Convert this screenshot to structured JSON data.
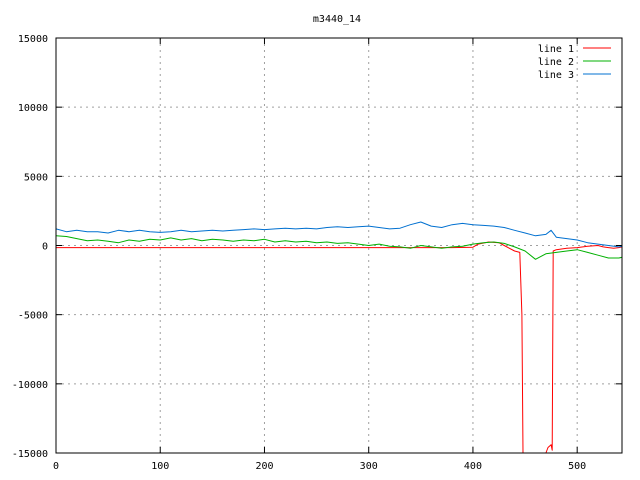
{
  "chart_data": {
    "type": "line",
    "title": "m3440_14",
    "xlabel": "",
    "ylabel": "",
    "xlim": [
      0,
      543
    ],
    "ylim": [
      -15000,
      15000
    ],
    "x_ticks": [
      0,
      100,
      200,
      300,
      400,
      500
    ],
    "y_ticks": [
      -15000,
      -10000,
      -5000,
      0,
      5000,
      10000,
      15000
    ],
    "grid": true,
    "legend_position": "top-right",
    "series": [
      {
        "name": "line 1",
        "color": "#ff0000",
        "points": [
          [
            0,
            -150
          ],
          [
            100,
            -150
          ],
          [
            200,
            -150
          ],
          [
            300,
            -150
          ],
          [
            380,
            -150
          ],
          [
            400,
            -120
          ],
          [
            405,
            100
          ],
          [
            415,
            250
          ],
          [
            425,
            200
          ],
          [
            430,
            0
          ],
          [
            440,
            -400
          ],
          [
            445,
            -500
          ],
          [
            447,
            -5000
          ],
          [
            448,
            -15000
          ],
          [
            470,
            -15000
          ],
          [
            472,
            -14600
          ],
          [
            475,
            -14400
          ],
          [
            476,
            -14800
          ],
          [
            477,
            -400
          ],
          [
            480,
            -300
          ],
          [
            490,
            -200
          ],
          [
            500,
            -150
          ],
          [
            510,
            -50
          ],
          [
            520,
            0
          ],
          [
            525,
            -100
          ],
          [
            530,
            -150
          ],
          [
            535,
            -200
          ],
          [
            540,
            -150
          ],
          [
            543,
            -100
          ]
        ]
      },
      {
        "name": "line 2",
        "color": "#00b000",
        "points": [
          [
            0,
            700
          ],
          [
            10,
            650
          ],
          [
            20,
            500
          ],
          [
            30,
            350
          ],
          [
            40,
            400
          ],
          [
            50,
            300
          ],
          [
            60,
            200
          ],
          [
            70,
            400
          ],
          [
            80,
            300
          ],
          [
            90,
            450
          ],
          [
            100,
            400
          ],
          [
            110,
            550
          ],
          [
            120,
            400
          ],
          [
            130,
            500
          ],
          [
            140,
            350
          ],
          [
            150,
            450
          ],
          [
            160,
            400
          ],
          [
            170,
            300
          ],
          [
            180,
            400
          ],
          [
            190,
            350
          ],
          [
            200,
            450
          ],
          [
            210,
            250
          ],
          [
            220,
            350
          ],
          [
            230,
            250
          ],
          [
            240,
            300
          ],
          [
            250,
            200
          ],
          [
            260,
            250
          ],
          [
            270,
            150
          ],
          [
            280,
            200
          ],
          [
            290,
            100
          ],
          [
            300,
            0
          ],
          [
            310,
            100
          ],
          [
            320,
            -50
          ],
          [
            330,
            -100
          ],
          [
            340,
            -200
          ],
          [
            350,
            0
          ],
          [
            360,
            -100
          ],
          [
            370,
            -200
          ],
          [
            380,
            -100
          ],
          [
            390,
            -50
          ],
          [
            400,
            100
          ],
          [
            410,
            200
          ],
          [
            420,
            250
          ],
          [
            430,
            150
          ],
          [
            440,
            -100
          ],
          [
            450,
            -400
          ],
          [
            460,
            -1000
          ],
          [
            470,
            -600
          ],
          [
            480,
            -500
          ],
          [
            490,
            -400
          ],
          [
            500,
            -300
          ],
          [
            510,
            -500
          ],
          [
            520,
            -700
          ],
          [
            530,
            -900
          ],
          [
            540,
            -900
          ],
          [
            543,
            -850
          ]
        ]
      },
      {
        "name": "line 3",
        "color": "#0070d0",
        "points": [
          [
            0,
            1200
          ],
          [
            10,
            1000
          ],
          [
            20,
            1100
          ],
          [
            30,
            1000
          ],
          [
            40,
            1000
          ],
          [
            50,
            900
          ],
          [
            60,
            1100
          ],
          [
            70,
            1000
          ],
          [
            80,
            1100
          ],
          [
            90,
            1000
          ],
          [
            100,
            950
          ],
          [
            110,
            1000
          ],
          [
            120,
            1100
          ],
          [
            130,
            1000
          ],
          [
            140,
            1050
          ],
          [
            150,
            1100
          ],
          [
            160,
            1050
          ],
          [
            170,
            1100
          ],
          [
            180,
            1150
          ],
          [
            190,
            1200
          ],
          [
            200,
            1150
          ],
          [
            210,
            1200
          ],
          [
            220,
            1250
          ],
          [
            230,
            1200
          ],
          [
            240,
            1250
          ],
          [
            250,
            1200
          ],
          [
            260,
            1300
          ],
          [
            270,
            1350
          ],
          [
            280,
            1300
          ],
          [
            290,
            1350
          ],
          [
            300,
            1400
          ],
          [
            310,
            1300
          ],
          [
            320,
            1200
          ],
          [
            330,
            1250
          ],
          [
            340,
            1500
          ],
          [
            350,
            1700
          ],
          [
            360,
            1400
          ],
          [
            370,
            1300
          ],
          [
            380,
            1500
          ],
          [
            390,
            1600
          ],
          [
            400,
            1500
          ],
          [
            410,
            1450
          ],
          [
            420,
            1400
          ],
          [
            430,
            1300
          ],
          [
            440,
            1100
          ],
          [
            450,
            900
          ],
          [
            460,
            700
          ],
          [
            470,
            800
          ],
          [
            475,
            1100
          ],
          [
            480,
            600
          ],
          [
            490,
            500
          ],
          [
            500,
            400
          ],
          [
            510,
            200
          ],
          [
            520,
            100
          ],
          [
            530,
            0
          ],
          [
            540,
            -100
          ],
          [
            543,
            -50
          ]
        ]
      }
    ]
  }
}
